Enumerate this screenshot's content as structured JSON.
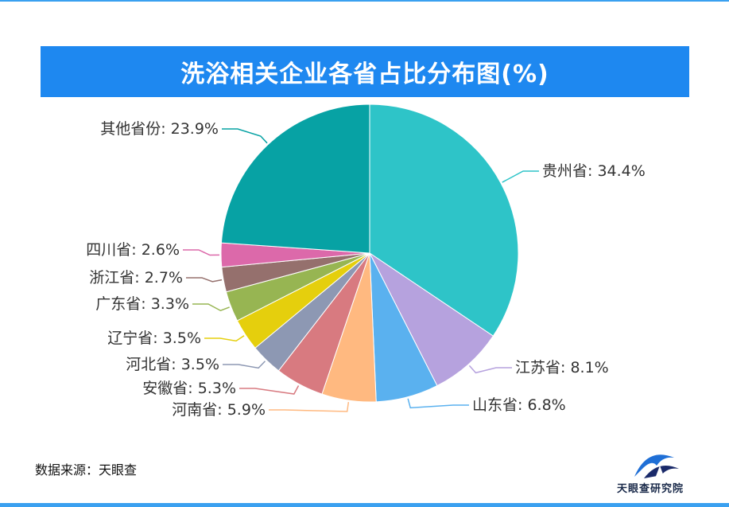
{
  "chart_data": {
    "type": "pie",
    "title": "洗浴相关企业各省占比分布图(%)",
    "unit": "%",
    "slices": [
      {
        "name": "贵州省",
        "value": 34.4,
        "label": "贵州省: 34.4%",
        "color": "#2ec4c8"
      },
      {
        "name": "江苏省",
        "value": 8.1,
        "label": "江苏省: 8.1%",
        "color": "#b6a2de"
      },
      {
        "name": "山东省",
        "value": 6.8,
        "label": "山东省: 6.8%",
        "color": "#5ab1ef"
      },
      {
        "name": "河南省",
        "value": 5.9,
        "label": "河南省: 5.9%",
        "color": "#ffb980"
      },
      {
        "name": "安徽省",
        "value": 5.3,
        "label": "安徽省: 5.3%",
        "color": "#d87a80"
      },
      {
        "name": "河北省",
        "value": 3.5,
        "label": "河北省: 3.5%",
        "color": "#8d98b3"
      },
      {
        "name": "辽宁省",
        "value": 3.5,
        "label": "辽宁省: 3.5%",
        "color": "#e5cf0d"
      },
      {
        "name": "广东省",
        "value": 3.3,
        "label": "广东省: 3.3%",
        "color": "#97b552"
      },
      {
        "name": "浙江省",
        "value": 2.7,
        "label": "浙江省: 2.7%",
        "color": "#95706d"
      },
      {
        "name": "四川省",
        "value": 2.6,
        "label": "四川省: 2.6%",
        "color": "#dc69aa"
      },
      {
        "name": "其他省份",
        "value": 23.9,
        "label": "其他省份: 23.9%",
        "color": "#07a2a4"
      }
    ]
  },
  "source_text": "数据来源：天眼查",
  "logo_text": "天眼查研究院"
}
